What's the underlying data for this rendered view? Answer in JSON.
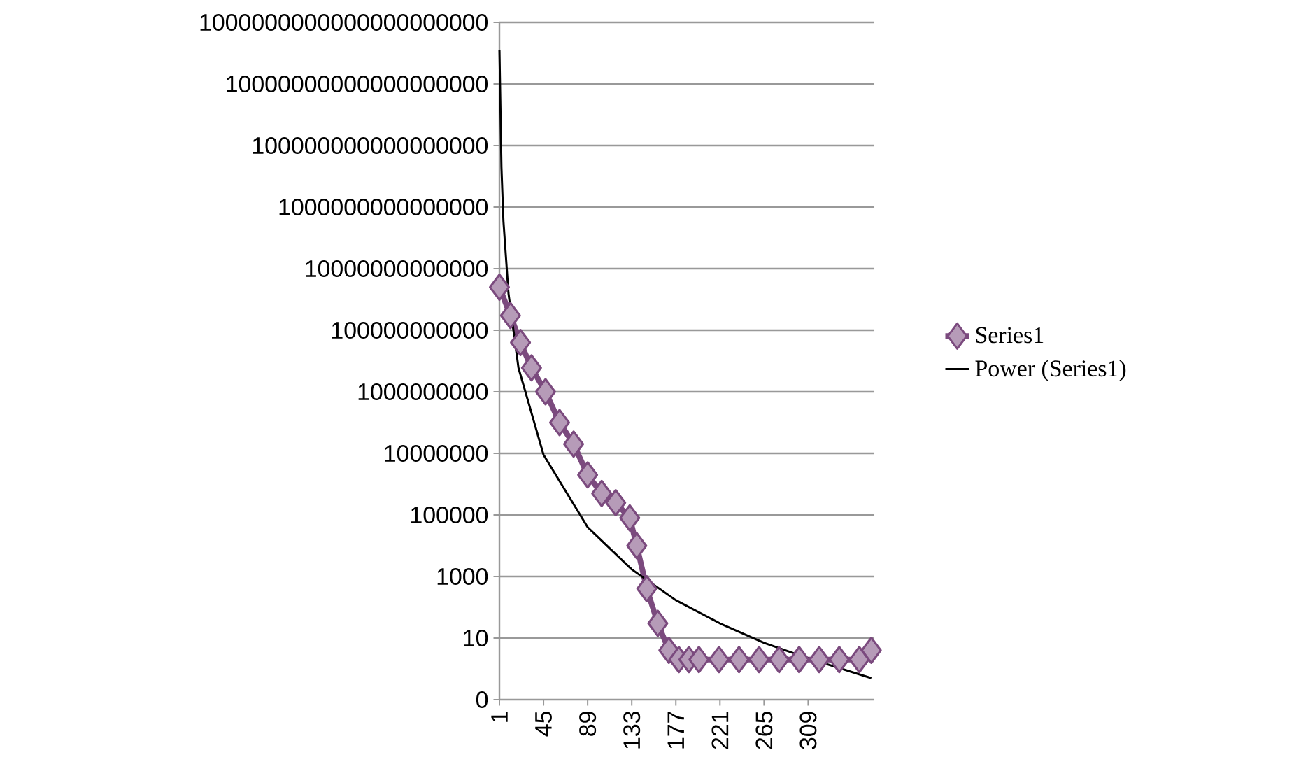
{
  "chart_data": {
    "type": "line",
    "log": "y",
    "grid": "y",
    "legend": "right",
    "xlim": [
      1,
      375
    ],
    "xticks": [
      1,
      45,
      89,
      133,
      177,
      221,
      265,
      309
    ],
    "ylim": [
      0.1,
      1000000000000000000000
    ],
    "yticks": [
      {
        "value": 0.1,
        "label": "0"
      },
      10,
      1000,
      100000,
      10000000,
      1000000000,
      100000000000,
      10000000000000,
      1000000000000000,
      100000000000000000,
      10000000000000000000,
      1000000000000000000000
    ],
    "series": [
      {
        "name": "Series1",
        "marker": "diamond",
        "color": "#7b4a7e",
        "x": [
          1,
          12,
          22,
          33,
          47,
          61,
          75,
          89,
          103,
          117,
          131,
          138,
          148,
          159,
          170,
          180,
          190,
          200,
          220,
          240,
          260,
          280,
          300,
          320,
          340,
          360,
          372
        ],
        "values": [
          2500000000000,
          300000000000,
          40000000000,
          6000000000,
          1000000000,
          100000000,
          20000000,
          2000000,
          500000,
          250000,
          80000,
          10000,
          400,
          30,
          4,
          2,
          2,
          2,
          2,
          2,
          2,
          2,
          2,
          2,
          2,
          2,
          4
        ]
      },
      {
        "name": "Power (Series1)",
        "marker": "none",
        "color": "#000000",
        "x": [
          1,
          3,
          5,
          10,
          20,
          45,
          89,
          133,
          177,
          221,
          265,
          309,
          372
        ],
        "values": [
          130000000000000000000,
          20000000000000000,
          350000000000000,
          1600000000000,
          6000000000,
          9000000,
          40000,
          1700,
          170,
          30,
          7,
          2.2,
          0.5
        ]
      }
    ]
  }
}
